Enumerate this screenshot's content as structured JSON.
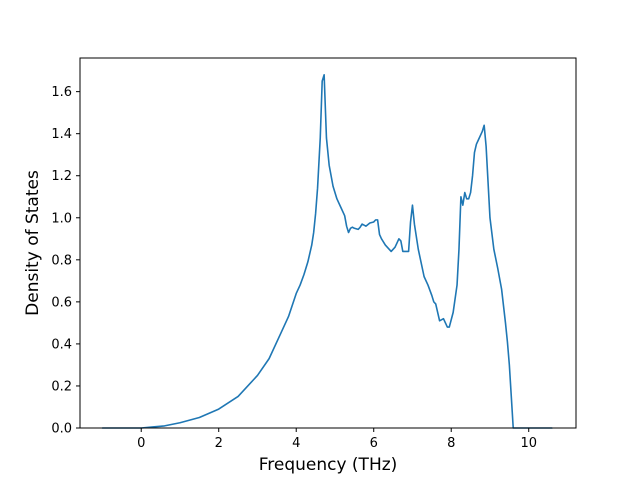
{
  "chart_data": {
    "type": "line",
    "title": "",
    "xlabel": "Frequency (THz)",
    "ylabel": "Density of States",
    "xlim": [
      -1.58,
      11.22
    ],
    "ylim": [
      0,
      1.76
    ],
    "xticks": [
      0,
      2,
      4,
      6,
      8,
      10
    ],
    "yticks": [
      0.0,
      0.2,
      0.4,
      0.6,
      0.8,
      1.0,
      1.2,
      1.4,
      1.6
    ],
    "xtick_labels": [
      "0",
      "2",
      "4",
      "6",
      "8",
      "10"
    ],
    "ytick_labels": [
      "0.0",
      "0.2",
      "0.4",
      "0.6",
      "0.8",
      "1.0",
      "1.2",
      "1.4",
      "1.6"
    ],
    "grid": false,
    "legend": "none",
    "series": [
      {
        "color": "#1f77b4",
        "x": [
          -1.0,
          -0.5,
          0.0,
          0.3,
          0.6,
          1.0,
          1.5,
          2.0,
          2.5,
          3.0,
          3.3,
          3.6,
          3.8,
          4.0,
          4.1,
          4.2,
          4.3,
          4.4,
          4.45,
          4.5,
          4.55,
          4.62,
          4.67,
          4.72,
          4.78,
          4.85,
          4.95,
          5.05,
          5.15,
          5.25,
          5.3,
          5.35,
          5.4,
          5.45,
          5.5,
          5.6,
          5.65,
          5.7,
          5.8,
          5.9,
          6.0,
          6.05,
          6.1,
          6.15,
          6.2,
          6.3,
          6.4,
          6.45,
          6.55,
          6.65,
          6.7,
          6.75,
          6.8,
          6.9,
          6.95,
          7.0,
          7.05,
          7.15,
          7.3,
          7.4,
          7.5,
          7.55,
          7.6,
          7.7,
          7.8,
          7.9,
          7.95,
          8.05,
          8.15,
          8.2,
          8.25,
          8.3,
          8.35,
          8.4,
          8.45,
          8.5,
          8.55,
          8.6,
          8.65,
          8.7,
          8.8,
          8.85,
          8.9,
          8.95,
          9.0,
          9.1,
          9.2,
          9.3,
          9.4,
          9.45,
          9.5,
          9.55,
          9.6,
          9.65,
          9.7,
          10.0,
          10.6
        ],
        "y": [
          0.0,
          0.0,
          0.0,
          0.005,
          0.01,
          0.025,
          0.05,
          0.09,
          0.15,
          0.25,
          0.33,
          0.45,
          0.53,
          0.64,
          0.68,
          0.73,
          0.79,
          0.87,
          0.93,
          1.02,
          1.14,
          1.38,
          1.65,
          1.68,
          1.38,
          1.25,
          1.15,
          1.09,
          1.05,
          1.01,
          0.96,
          0.93,
          0.95,
          0.955,
          0.95,
          0.945,
          0.955,
          0.97,
          0.96,
          0.975,
          0.98,
          0.99,
          0.99,
          0.92,
          0.9,
          0.87,
          0.85,
          0.84,
          0.86,
          0.9,
          0.89,
          0.84,
          0.84,
          0.84,
          0.98,
          1.06,
          0.97,
          0.85,
          0.72,
          0.68,
          0.63,
          0.6,
          0.59,
          0.51,
          0.52,
          0.48,
          0.48,
          0.55,
          0.68,
          0.85,
          1.1,
          1.06,
          1.12,
          1.09,
          1.09,
          1.12,
          1.2,
          1.31,
          1.35,
          1.37,
          1.41,
          1.44,
          1.34,
          1.17,
          1.0,
          0.85,
          0.76,
          0.66,
          0.5,
          0.41,
          0.3,
          0.15,
          0.0,
          0.0,
          0.0,
          0.0,
          0.0
        ]
      }
    ]
  }
}
